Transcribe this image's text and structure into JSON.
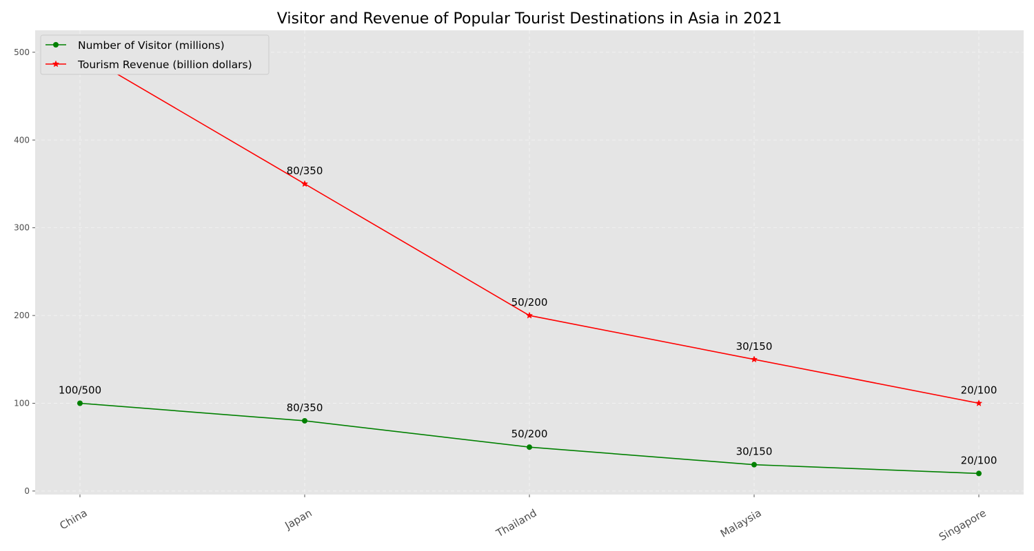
{
  "chart_data": {
    "type": "line",
    "title": "Visitor and Revenue of Popular Tourist Destinations in Asia in 2021",
    "xlabel": "",
    "ylabel": "",
    "categories": [
      "China",
      "Japan",
      "Thailand",
      "Malaysia",
      "Singapore"
    ],
    "ylim": [
      -4,
      525
    ],
    "yticks": [
      0,
      100,
      200,
      300,
      400,
      500
    ],
    "grid": true,
    "legend_position": "upper left",
    "series": [
      {
        "name": "Number of Visitor (millions)",
        "values": [
          100,
          80,
          50,
          30,
          20
        ],
        "color": "#008000",
        "marker": "circle"
      },
      {
        "name": "Tourism Revenue (billion dollars)",
        "values": [
          500,
          350,
          200,
          150,
          100
        ],
        "color": "#ff0000",
        "marker": "star"
      }
    ],
    "annotations": [
      "100/500",
      "80/350",
      "50/200",
      "30/150",
      "20/100"
    ]
  }
}
